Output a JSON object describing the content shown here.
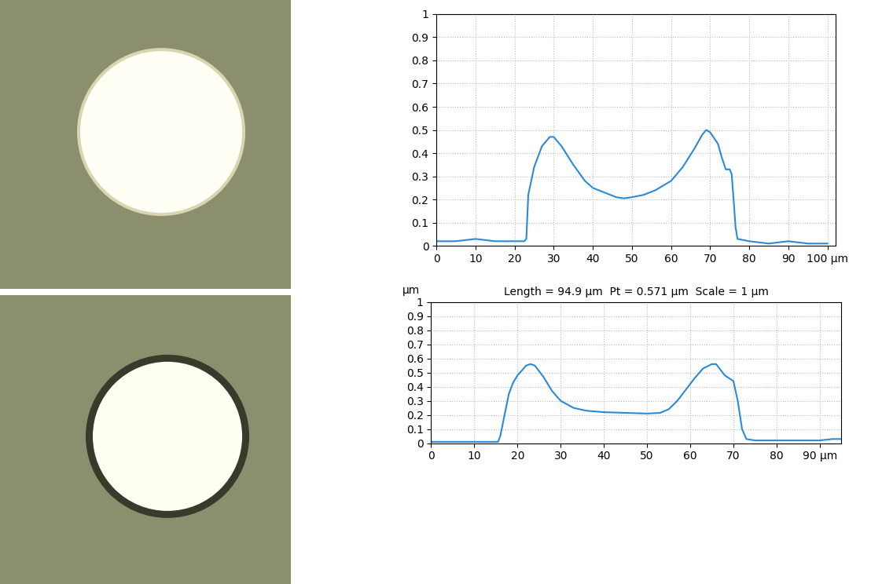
{
  "chart_data": [
    {
      "type": "line",
      "x": [
        0,
        5,
        10,
        15,
        20,
        22.5,
        23,
        23.5,
        25,
        27,
        29,
        30,
        32,
        35,
        38,
        40,
        43,
        46,
        48,
        50,
        53,
        56,
        60,
        63,
        66,
        68,
        69,
        70,
        72,
        73,
        74,
        75,
        75.5,
        76,
        76.5,
        77,
        80,
        85,
        90,
        95,
        100
      ],
      "values": [
        0.02,
        0.02,
        0.03,
        0.02,
        0.02,
        0.02,
        0.03,
        0.22,
        0.34,
        0.43,
        0.47,
        0.47,
        0.43,
        0.35,
        0.28,
        0.25,
        0.23,
        0.21,
        0.205,
        0.21,
        0.22,
        0.24,
        0.28,
        0.34,
        0.42,
        0.48,
        0.5,
        0.49,
        0.44,
        0.38,
        0.33,
        0.33,
        0.31,
        0.2,
        0.08,
        0.03,
        0.02,
        0.01,
        0.02,
        0.01,
        0.01
      ],
      "color": "#2b8ad6",
      "xlim": [
        0,
        102
      ],
      "xticks": [
        0,
        10,
        20,
        30,
        40,
        50,
        60,
        70,
        80,
        90,
        {
          "value": 100,
          "label": "100 µm"
        }
      ],
      "ylim": [
        0,
        1
      ],
      "yticks": [
        0,
        0.1,
        0.2,
        0.3,
        0.4,
        0.5,
        0.6,
        0.7,
        0.8,
        0.9,
        1
      ],
      "grid": true
    },
    {
      "type": "line",
      "title": "Length = 94.9 µm  Pt = 0.571 µm  Scale = 1 µm",
      "y_label": "µm",
      "x": [
        0,
        5,
        10,
        14,
        15.5,
        16,
        17,
        18,
        19,
        20,
        22,
        23,
        24,
        26,
        28,
        30,
        33,
        36,
        40,
        45,
        50,
        53,
        55,
        57,
        59,
        61,
        63,
        65,
        66,
        67,
        68,
        69,
        70,
        71,
        72,
        73,
        75,
        80,
        85,
        90,
        93,
        95
      ],
      "values": [
        0.01,
        0.01,
        0.01,
        0.01,
        0.01,
        0.05,
        0.2,
        0.35,
        0.43,
        0.48,
        0.55,
        0.56,
        0.55,
        0.47,
        0.37,
        0.3,
        0.25,
        0.23,
        0.22,
        0.215,
        0.21,
        0.215,
        0.24,
        0.3,
        0.38,
        0.46,
        0.53,
        0.56,
        0.56,
        0.52,
        0.48,
        0.46,
        0.44,
        0.3,
        0.1,
        0.03,
        0.02,
        0.02,
        0.02,
        0.02,
        0.03,
        0.03
      ],
      "color": "#2b8ad6",
      "xlim": [
        0,
        95
      ],
      "xticks": [
        0,
        10,
        20,
        30,
        40,
        50,
        60,
        70,
        80,
        {
          "value": 90,
          "label": "90 µm"
        }
      ],
      "ylim": [
        0,
        1
      ],
      "yticks": [
        0,
        0.1,
        0.2,
        0.3,
        0.4,
        0.5,
        0.6,
        0.7,
        0.8,
        0.9,
        1
      ],
      "grid": true
    }
  ]
}
